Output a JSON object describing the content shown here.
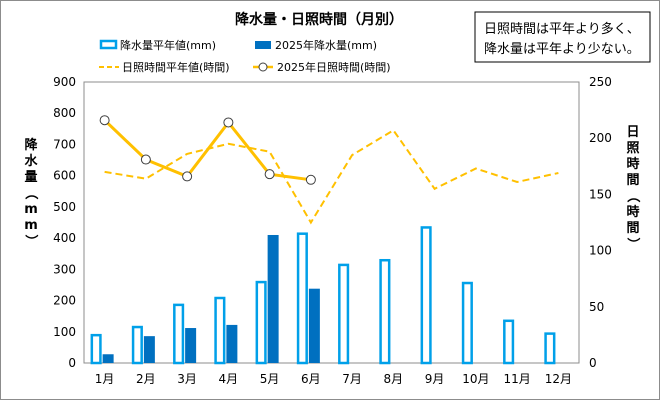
{
  "chart_data": {
    "type": "bar",
    "title": "降水量・日照時間（月別）",
    "annotation": [
      "日照時間は平年より多く、",
      "降水量は平年より少ない。"
    ],
    "categories": [
      "1月",
      "2月",
      "3月",
      "4月",
      "5月",
      "6月",
      "7月",
      "8月",
      "9月",
      "10月",
      "11月",
      "12月"
    ],
    "ylabel_left": "降水量（mm）",
    "ylabel_right": "日照時間（時間）",
    "ylim_left": [
      0,
      900
    ],
    "ylim_right": [
      0,
      250
    ],
    "yticks_left": [
      "0",
      "100",
      "200",
      "300",
      "400",
      "500",
      "600",
      "700",
      "800",
      "900"
    ],
    "yticks_right": [
      "0",
      "50",
      "100",
      "150",
      "200",
      "250"
    ],
    "legend": {
      "placement": "top-left",
      "items": [
        "降水量平年値(mm)",
        "2025年降水量(mm)",
        "日照時間平年値(時間)",
        "2025年日照時間(時間)"
      ]
    },
    "series": [
      {
        "name": "降水量平年値(mm)",
        "kind": "bar",
        "axis": "left",
        "color": "#00a0e9",
        "values": [
          93,
          119,
          190,
          212,
          263,
          418,
          318,
          333,
          438,
          260,
          139,
          98
        ]
      },
      {
        "name": "2025年降水量(mm)",
        "kind": "bar",
        "axis": "left",
        "color": "#0070c0",
        "values": [
          28,
          86,
          112,
          122,
          410,
          238,
          null,
          null,
          null,
          null,
          null,
          null
        ]
      },
      {
        "name": "日照時間平年値(時間)",
        "kind": "line",
        "axis": "right",
        "color": "#ffc000",
        "dashed": true,
        "values": [
          170,
          164,
          186,
          195,
          188,
          125,
          185,
          207,
          155,
          173,
          161,
          169
        ]
      },
      {
        "name": "2025年日照時間(時間)",
        "kind": "line",
        "axis": "right",
        "color": "#ffc000",
        "values": [
          216,
          181,
          166,
          214,
          168,
          163,
          null,
          null,
          null,
          null,
          null,
          null
        ]
      }
    ]
  }
}
